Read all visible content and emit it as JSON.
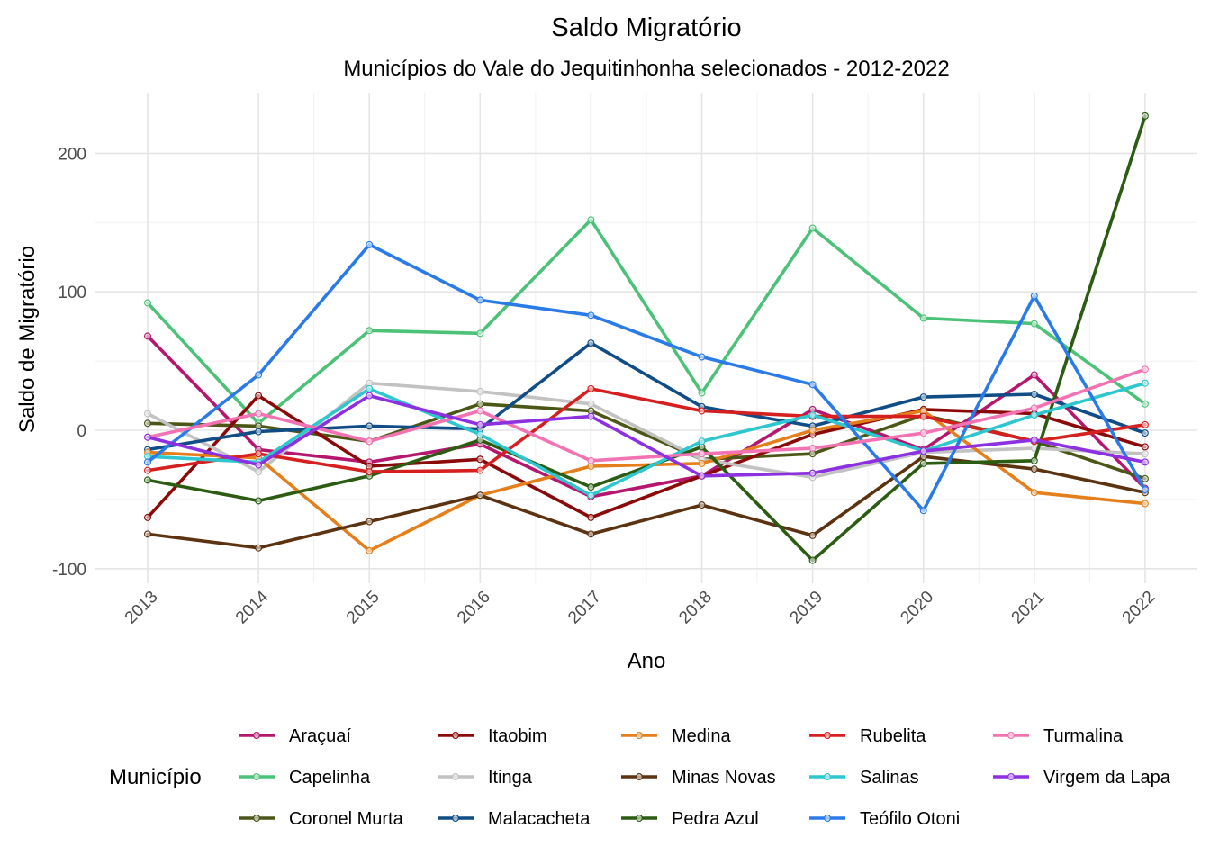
{
  "chart_data": {
    "type": "line",
    "title": "Saldo Migratório",
    "subtitle": "Municípios do Vale do Jequitinhonha selecionados - 2012-2022",
    "xlabel": "Ano",
    "ylabel": "Saldo de Migratório",
    "x": [
      "2013",
      "2014",
      "2015",
      "2016",
      "2017",
      "2018",
      "2019",
      "2020",
      "2021",
      "2022"
    ],
    "ylim": [
      -110,
      240
    ],
    "yticks": [
      -100,
      0,
      100,
      200
    ],
    "ytick_labels": [
      "-100",
      "0",
      "100",
      "200"
    ],
    "grid": true,
    "legend": {
      "title": "Município",
      "position": "bottom"
    },
    "series": [
      {
        "name": "Araçuaí",
        "color": "#b5176e",
        "values": [
          68,
          -14,
          -23,
          -10,
          -48,
          -33,
          15,
          -14,
          40,
          -42
        ]
      },
      {
        "name": "Capelinha",
        "color": "#4cc278",
        "values": [
          92,
          5,
          72,
          70,
          152,
          27,
          146,
          81,
          77,
          19
        ]
      },
      {
        "name": "Coronel Murta",
        "color": "#4b5716",
        "values": [
          5,
          3,
          -8,
          19,
          14,
          -21,
          -17,
          11,
          -8,
          -35
        ]
      },
      {
        "name": "Itaobim",
        "color": "#8a0a0a",
        "values": [
          -63,
          25,
          -26,
          -21,
          -63,
          -33,
          -3,
          15,
          12,
          -12
        ]
      },
      {
        "name": "Itinga",
        "color": "#c2c2c2",
        "values": [
          12,
          -30,
          34,
          28,
          19,
          -21,
          -34,
          -16,
          -13,
          -17
        ]
      },
      {
        "name": "Malacacheta",
        "color": "#104c85",
        "values": [
          -14,
          -1,
          3,
          1,
          63,
          17,
          3,
          24,
          26,
          -2
        ]
      },
      {
        "name": "Medina",
        "color": "#e47f1c",
        "values": [
          -16,
          -20,
          -87,
          -47,
          -26,
          -24,
          0,
          14,
          -45,
          -53
        ]
      },
      {
        "name": "Minas Novas",
        "color": "#5b3310",
        "values": [
          -75,
          -85,
          -66,
          -47,
          -75,
          -54,
          -76,
          -19,
          -28,
          -45
        ]
      },
      {
        "name": "Pedra Azul",
        "color": "#2b5c12",
        "values": [
          -36,
          -51,
          -33,
          -7,
          -41,
          -12,
          -94,
          -24,
          -22,
          227
        ]
      },
      {
        "name": "Rubelita",
        "color": "#d61f1f",
        "values": [
          -29,
          -17,
          -30,
          -29,
          30,
          14,
          10,
          10,
          -8,
          4
        ]
      },
      {
        "name": "Salinas",
        "color": "#2ec6cf",
        "values": [
          -19,
          -23,
          30,
          -3,
          -47,
          -8,
          11,
          -15,
          11,
          34
        ]
      },
      {
        "name": "Teófilo Otoni",
        "color": "#2a7be8",
        "values": [
          -23,
          40,
          134,
          94,
          83,
          53,
          33,
          -58,
          97,
          -43
        ]
      },
      {
        "name": "Turmalina",
        "color": "#f373b2",
        "values": [
          -5,
          12,
          -8,
          14,
          -22,
          -17,
          -13,
          -2,
          16,
          44
        ]
      },
      {
        "name": "Virgem da Lapa",
        "color": "#8c30e0",
        "values": [
          -5,
          -25,
          25,
          4,
          10,
          -33,
          -31,
          -15,
          -7,
          -23
        ]
      }
    ]
  }
}
